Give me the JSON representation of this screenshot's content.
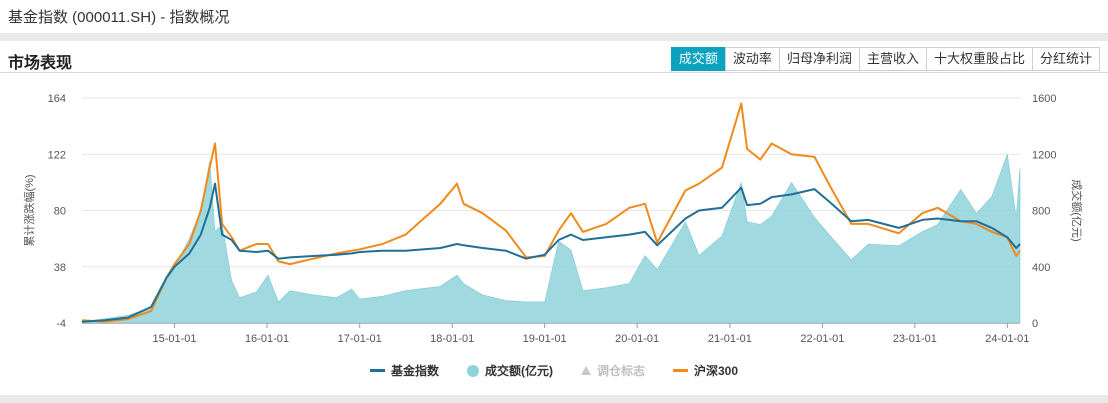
{
  "page": {
    "title": "基金指数 (000011.SH) - 指数概况"
  },
  "section": {
    "title": "市场表现"
  },
  "tabs": [
    {
      "label": "成交额",
      "active": true
    },
    {
      "label": "波动率",
      "active": false
    },
    {
      "label": "归母净利润",
      "active": false
    },
    {
      "label": "主营收入",
      "active": false
    },
    {
      "label": "十大权重股占比",
      "active": false
    },
    {
      "label": "分红统计",
      "active": false
    }
  ],
  "colors": {
    "accent": "#0aa3bf",
    "fund_index": "#1f6f96",
    "turnover": "#8fd3da",
    "hs300": "#f08a1c"
  },
  "chart_data": {
    "type": "line",
    "x_dates": [
      "2014-01-01",
      "2014-04-01",
      "2014-07-01",
      "2014-10-01",
      "2014-12-01",
      "2015-01-01",
      "2015-03-01",
      "2015-04-15",
      "2015-05-20",
      "2015-06-10",
      "2015-07-08",
      "2015-08-15",
      "2015-09-15",
      "2015-11-20",
      "2016-01-05",
      "2016-02-15",
      "2016-04-01",
      "2016-07-01",
      "2016-10-01",
      "2016-12-01",
      "2017-01-01",
      "2017-04-01",
      "2017-07-01",
      "2017-11-15",
      "2018-01-20",
      "2018-02-15",
      "2018-05-01",
      "2018-08-01",
      "2018-10-20",
      "2019-01-01",
      "2019-02-25",
      "2019-04-15",
      "2019-06-01",
      "2019-09-01",
      "2019-12-01",
      "2020-02-01",
      "2020-03-20",
      "2020-07-10",
      "2020-09-01",
      "2020-12-01",
      "2021-02-15",
      "2021-03-10",
      "2021-05-01",
      "2021-06-15",
      "2021-09-01",
      "2021-12-01",
      "2022-02-01",
      "2022-04-25",
      "2022-07-01",
      "2022-10-30",
      "2023-01-30",
      "2023-04-01",
      "2023-07-01",
      "2023-09-01",
      "2023-11-01",
      "2024-01-01",
      "2024-02-05",
      "2024-02-20"
    ],
    "series": [
      {
        "name": "基金指数",
        "values": [
          -3,
          -2,
          0,
          8,
          30,
          38,
          48,
          62,
          82,
          100,
          62,
          58,
          50,
          49,
          50,
          44,
          45,
          46,
          47,
          48,
          49,
          50,
          50,
          52,
          55,
          54,
          52,
          50,
          44,
          47,
          58,
          62,
          58,
          60,
          62,
          64,
          54,
          74,
          80,
          82,
          97,
          84,
          85,
          90,
          92,
          96,
          86,
          72,
          73,
          67,
          73,
          74,
          72,
          72,
          67,
          60,
          52,
          55
        ]
      },
      {
        "name": "沪深300",
        "values": [
          -2,
          -3,
          -1,
          5,
          30,
          40,
          55,
          80,
          112,
          130,
          70,
          60,
          50,
          55,
          55,
          42,
          40,
          44,
          48,
          50,
          51,
          55,
          62,
          85,
          100,
          85,
          78,
          65,
          45,
          46,
          65,
          78,
          64,
          70,
          82,
          85,
          56,
          95,
          100,
          112,
          160,
          126,
          118,
          130,
          122,
          120,
          98,
          70,
          70,
          63,
          78,
          82,
          72,
          70,
          64,
          60,
          46,
          50
        ]
      },
      {
        "name": "成交额(亿元)",
        "values": [
          10,
          30,
          55,
          110,
          300,
          400,
          600,
          800,
          1150,
          650,
          700,
          300,
          180,
          220,
          340,
          150,
          230,
          200,
          180,
          240,
          170,
          190,
          230,
          260,
          340,
          280,
          200,
          160,
          150,
          150,
          580,
          520,
          230,
          250,
          280,
          480,
          380,
          720,
          480,
          620,
          1000,
          720,
          700,
          760,
          1000,
          750,
          620,
          450,
          560,
          550,
          650,
          700,
          950,
          780,
          900,
          1200,
          750,
          1100
        ]
      },
      {
        "name": "调仓标志",
        "values": []
      }
    ],
    "x_ticks": [
      "15-01-01",
      "16-01-01",
      "17-01-01",
      "18-01-01",
      "19-01-01",
      "20-01-01",
      "21-01-01",
      "22-01-01",
      "23-01-01",
      "24-01-01"
    ],
    "y_left": {
      "label": "累计涨跌幅(%)",
      "ticks": [
        164,
        122,
        80,
        38,
        -4
      ],
      "lim": [
        -4,
        164
      ]
    },
    "y_right": {
      "label": "成交额(亿元)",
      "ticks": [
        1600,
        1200,
        800,
        400,
        0
      ],
      "lim": [
        0,
        1600
      ]
    },
    "legend": [
      "基金指数",
      "成交额(亿元)",
      "调仓标志",
      "沪深300"
    ],
    "legend_position": "bottom",
    "grid": true
  }
}
